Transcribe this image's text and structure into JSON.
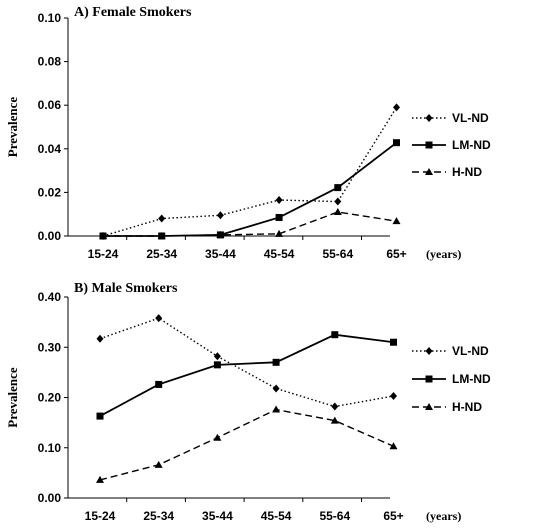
{
  "chart_data": [
    {
      "type": "line",
      "title": "A) Female Smokers",
      "ylabel": "Prevalence",
      "x_unit_label": "(years)",
      "categories": [
        "15-24",
        "25-34",
        "35-44",
        "45-54",
        "55-64",
        "65+"
      ],
      "ylim": [
        0,
        0.1
      ],
      "yticks": [
        "0.00",
        "0.02",
        "0.04",
        "0.06",
        "0.08",
        "0.10"
      ],
      "legend_position": "right",
      "series": [
        {
          "name": "VL-ND",
          "style": "dotted",
          "marker": "diamond",
          "values": [
            0.0,
            0.008,
            0.0095,
            0.0165,
            0.0158,
            0.059
          ]
        },
        {
          "name": "LM-ND",
          "style": "solid",
          "marker": "square",
          "values": [
            0.0,
            0.0,
            0.0005,
            0.0085,
            0.0222,
            0.0428
          ]
        },
        {
          "name": "H-ND",
          "style": "dashed",
          "marker": "triangle",
          "values": [
            0.0,
            0.0,
            0.0005,
            0.001,
            0.011,
            0.0068
          ]
        }
      ]
    },
    {
      "type": "line",
      "title": "B) Male Smokers",
      "ylabel": "Prevalence",
      "x_unit_label": "(years)",
      "categories": [
        "15-24",
        "25-34",
        "35-44",
        "45-54",
        "55-64",
        "65+"
      ],
      "ylim": [
        0,
        0.4
      ],
      "yticks": [
        "0.00",
        "0.10",
        "0.20",
        "0.30",
        "0.40"
      ],
      "legend_position": "right",
      "series": [
        {
          "name": "VL-ND",
          "style": "dotted",
          "marker": "diamond",
          "values": [
            0.317,
            0.358,
            0.282,
            0.218,
            0.182,
            0.203
          ]
        },
        {
          "name": "LM-ND",
          "style": "solid",
          "marker": "square",
          "values": [
            0.163,
            0.226,
            0.265,
            0.27,
            0.325,
            0.31
          ]
        },
        {
          "name": "H-ND",
          "style": "dashed",
          "marker": "triangle",
          "values": [
            0.036,
            0.066,
            0.12,
            0.176,
            0.154,
            0.103
          ]
        }
      ]
    }
  ]
}
